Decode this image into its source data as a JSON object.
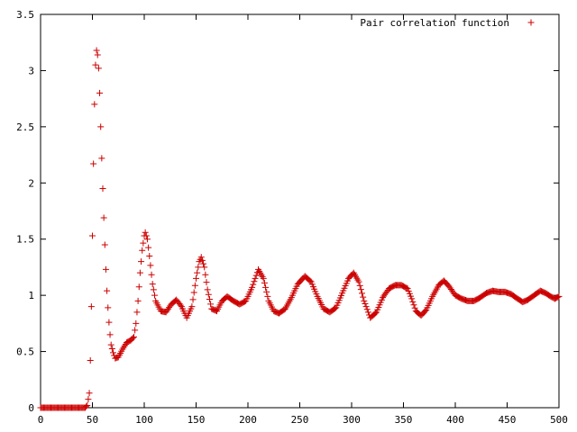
{
  "chart_data": {
    "type": "scatter",
    "title": "",
    "xlabel": "",
    "ylabel": "",
    "xlim": [
      0,
      500
    ],
    "ylim": [
      0,
      3.5
    ],
    "xticks": [
      0,
      50,
      100,
      150,
      200,
      250,
      300,
      350,
      400,
      450,
      500
    ],
    "xtick_labels": [
      "0",
      "50",
      "100",
      "150",
      "200",
      "250",
      "300",
      "350",
      "400",
      "450",
      "500"
    ],
    "yticks": [
      0,
      0.5,
      1,
      1.5,
      2,
      2.5,
      3,
      3.5
    ],
    "ytick_labels": [
      "0",
      "0.5",
      "1",
      "1.5",
      "2",
      "2.5",
      "3",
      "3.5"
    ],
    "grid": false,
    "legend_position": "top-right",
    "marker": "plus",
    "color": "#cc0000",
    "series": [
      {
        "name": "Pair correlation function",
        "anchors": [
          [
            0,
            0
          ],
          [
            43,
            0
          ],
          [
            45,
            0.02
          ],
          [
            47,
            0.13
          ],
          [
            48,
            0.42
          ],
          [
            49,
            0.9
          ],
          [
            50,
            1.53
          ],
          [
            51,
            2.17
          ],
          [
            52,
            2.7
          ],
          [
            53,
            3.05
          ],
          [
            54,
            3.18
          ],
          [
            55,
            3.14
          ],
          [
            56,
            3.02
          ],
          [
            57,
            2.8
          ],
          [
            58,
            2.5
          ],
          [
            59,
            2.22
          ],
          [
            60,
            1.95
          ],
          [
            61,
            1.69
          ],
          [
            62,
            1.45
          ],
          [
            63,
            1.23
          ],
          [
            64,
            1.04
          ],
          [
            65,
            0.89
          ],
          [
            66,
            0.76
          ],
          [
            67,
            0.65
          ],
          [
            68,
            0.56
          ],
          [
            70,
            0.49
          ],
          [
            72,
            0.44
          ],
          [
            75,
            0.45
          ],
          [
            79,
            0.52
          ],
          [
            83,
            0.58
          ],
          [
            87,
            0.6
          ],
          [
            90,
            0.63
          ],
          [
            92,
            0.75
          ],
          [
            94,
            0.95
          ],
          [
            96,
            1.2
          ],
          [
            98,
            1.4
          ],
          [
            100,
            1.53
          ],
          [
            101,
            1.56
          ],
          [
            103,
            1.5
          ],
          [
            105,
            1.35
          ],
          [
            108,
            1.1
          ],
          [
            111,
            0.95
          ],
          [
            116,
            0.86
          ],
          [
            121,
            0.85
          ],
          [
            126,
            0.92
          ],
          [
            131,
            0.96
          ],
          [
            136,
            0.9
          ],
          [
            141,
            0.8
          ],
          [
            146,
            0.9
          ],
          [
            150,
            1.15
          ],
          [
            153,
            1.3
          ],
          [
            155,
            1.34
          ],
          [
            158,
            1.25
          ],
          [
            161,
            1.05
          ],
          [
            165,
            0.88
          ],
          [
            170,
            0.86
          ],
          [
            175,
            0.95
          ],
          [
            180,
            0.99
          ],
          [
            186,
            0.95
          ],
          [
            192,
            0.92
          ],
          [
            198,
            0.95
          ],
          [
            204,
            1.07
          ],
          [
            210,
            1.23
          ],
          [
            215,
            1.15
          ],
          [
            220,
            0.95
          ],
          [
            225,
            0.86
          ],
          [
            230,
            0.84
          ],
          [
            236,
            0.88
          ],
          [
            242,
            0.98
          ],
          [
            248,
            1.1
          ],
          [
            255,
            1.17
          ],
          [
            261,
            1.12
          ],
          [
            267,
            0.99
          ],
          [
            273,
            0.88
          ],
          [
            279,
            0.85
          ],
          [
            285,
            0.89
          ],
          [
            291,
            1.02
          ],
          [
            297,
            1.15
          ],
          [
            302,
            1.2
          ],
          [
            307,
            1.12
          ],
          [
            312,
            0.95
          ],
          [
            318,
            0.8
          ],
          [
            324,
            0.85
          ],
          [
            330,
            0.98
          ],
          [
            336,
            1.06
          ],
          [
            342,
            1.09
          ],
          [
            348,
            1.09
          ],
          [
            354,
            1.06
          ],
          [
            358,
            0.97
          ],
          [
            362,
            0.86
          ],
          [
            367,
            0.82
          ],
          [
            372,
            0.87
          ],
          [
            378,
            0.99
          ],
          [
            384,
            1.09
          ],
          [
            389,
            1.13
          ],
          [
            394,
            1.08
          ],
          [
            400,
            1.0
          ],
          [
            406,
            0.97
          ],
          [
            412,
            0.95
          ],
          [
            418,
            0.95
          ],
          [
            424,
            0.98
          ],
          [
            430,
            1.02
          ],
          [
            436,
            1.04
          ],
          [
            442,
            1.03
          ],
          [
            448,
            1.03
          ],
          [
            454,
            1.01
          ],
          [
            460,
            0.97
          ],
          [
            465,
            0.94
          ],
          [
            470,
            0.96
          ],
          [
            476,
            1.0
          ],
          [
            482,
            1.04
          ],
          [
            487,
            1.02
          ],
          [
            492,
            0.99
          ],
          [
            496,
            0.97
          ],
          [
            500,
            0.99
          ]
        ]
      }
    ]
  }
}
